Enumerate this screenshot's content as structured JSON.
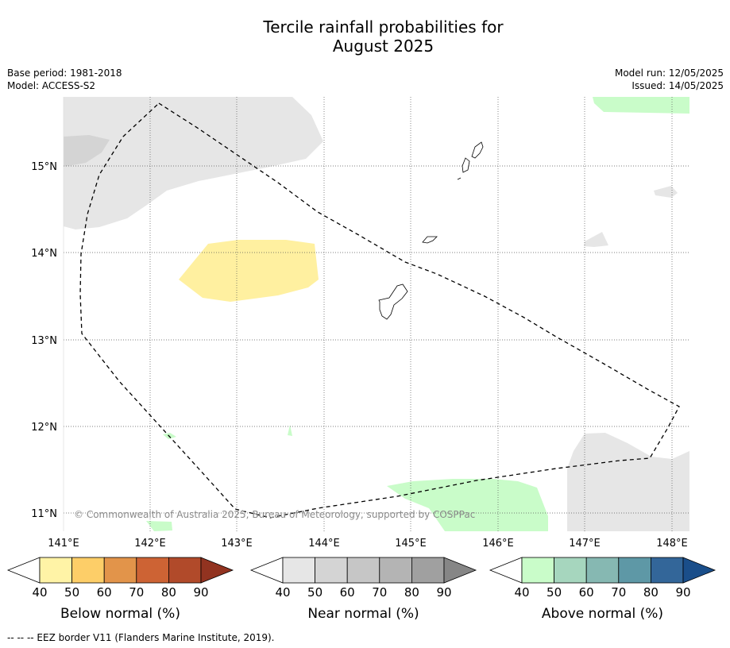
{
  "title_line1": "Tercile rainfall probabilities for",
  "title_line2": "August 2025",
  "meta": {
    "base_period": "Base period: 1981-2018",
    "model": "Model: ACCESS-S2",
    "model_run": "Model run: 12/05/2025",
    "issued": "Issued: 14/05/2025"
  },
  "map": {
    "lon_ticks": [
      "141°E",
      "142°E",
      "143°E",
      "144°E",
      "145°E",
      "146°E",
      "147°E",
      "148°E"
    ],
    "lat_ticks": [
      "15°N",
      "14°N",
      "13°N",
      "12°N",
      "11°N"
    ],
    "copyright": "© Commonwealth of Australia 2025, Bureau of Meteorology, supported by COSPPac"
  },
  "colorbars": [
    {
      "label": "Below normal (%)",
      "ticks": [
        "40",
        "50",
        "60",
        "70",
        "80",
        "90"
      ],
      "colors": [
        "#fff3a6",
        "#fdce68",
        "#e2944a",
        "#cd6334",
        "#b14a2a",
        "#923320"
      ],
      "end_color": "#923320"
    },
    {
      "label": "Near normal (%)",
      "ticks": [
        "40",
        "50",
        "60",
        "70",
        "80",
        "90"
      ],
      "colors": [
        "#e6e6e6",
        "#d4d4d4",
        "#c6c6c6",
        "#b4b4b4",
        "#a0a0a0",
        "#868686"
      ],
      "end_color": "#868686"
    },
    {
      "label": "Above normal (%)",
      "ticks": [
        "40",
        "50",
        "60",
        "70",
        "80",
        "90"
      ],
      "colors": [
        "#c9fcc9",
        "#a6d6be",
        "#86b8b2",
        "#5e98a6",
        "#336699",
        "#1a4e8a"
      ],
      "end_color": "#1a4e8a"
    }
  ],
  "footnote": "--  --  -- EEZ border V11 (Flanders Marine Institute, 2019)."
}
